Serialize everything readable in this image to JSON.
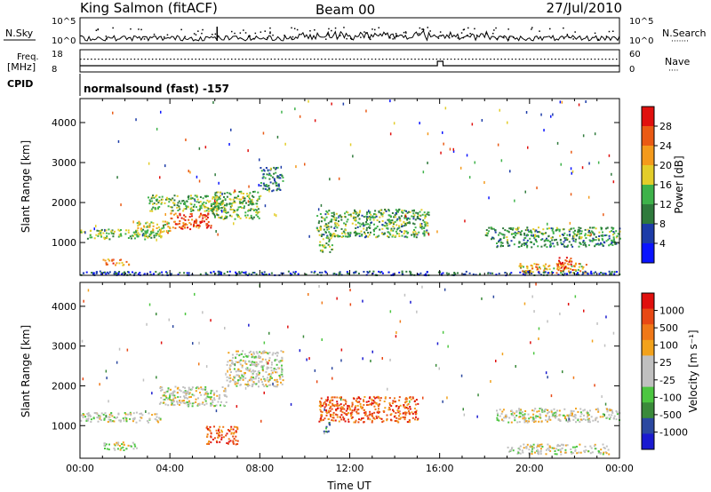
{
  "header": {
    "station": "King Salmon (fitACF)",
    "beam": "Beam 00",
    "date": "27/Jul/2010"
  },
  "noise_panel": {
    "left_label": "N.Sky",
    "right_label": "N.Search",
    "right_legend": "·······",
    "left_ticks": [
      "10^5",
      "10^0"
    ],
    "right_ticks": [
      "10^5",
      "10^0"
    ]
  },
  "freq_panel": {
    "left_label_1": "Freq.",
    "left_label_2": "[MHz]",
    "right_label": "Nave",
    "right_legend": "····",
    "left_ticks": [
      "18",
      "8"
    ],
    "right_ticks": [
      "60",
      "0"
    ]
  },
  "cpid": {
    "label": "CPID",
    "text": "normalsound (fast) -157"
  },
  "chart_data": [
    {
      "type": "heatmap",
      "name": "power",
      "ylabel": "Slant Range [km]",
      "ylim": [
        180,
        4600
      ],
      "yticks": [
        "1000",
        "2000",
        "3000",
        "4000"
      ],
      "colorbar": {
        "label": "Power [dB]",
        "ticks": [
          "4",
          "8",
          "12",
          "16",
          "20",
          "24",
          "28"
        ],
        "colors": [
          "#0a14ff",
          "#1d3ca8",
          "#2f7a3c",
          "#3eb24a",
          "#e3cd2a",
          "#f49a1c",
          "#ea5a14",
          "#e0100e"
        ]
      },
      "x_hours": [
        0,
        24
      ],
      "regions": [
        {
          "x": [
            0,
            3.6
          ],
          "y": [
            1100,
            1350
          ],
          "level": 0.45
        },
        {
          "x": [
            2.5,
            4.0
          ],
          "y": [
            1250,
            1550
          ],
          "level": 0.6
        },
        {
          "x": [
            4.0,
            5.8
          ],
          "y": [
            1350,
            1750
          ],
          "level": 0.85
        },
        {
          "x": [
            5.8,
            8.0
          ],
          "y": [
            1600,
            2300
          ],
          "level": 0.45
        },
        {
          "x": [
            8.0,
            9.0
          ],
          "y": [
            2300,
            2900
          ],
          "level": 0.3
        },
        {
          "x": [
            3.0,
            6.5
          ],
          "y": [
            1800,
            2200
          ],
          "level": 0.45
        },
        {
          "x": [
            1.0,
            2.2
          ],
          "y": [
            450,
            600
          ],
          "level": 0.72
        },
        {
          "x": [
            10.5,
            15.5
          ],
          "y": [
            1150,
            1850
          ],
          "level": 0.4
        },
        {
          "x": [
            10.6,
            11.2
          ],
          "y": [
            780,
            1150
          ],
          "level": 0.45
        },
        {
          "x": [
            18.0,
            24.0
          ],
          "y": [
            1100,
            1400
          ],
          "level": 0.38
        },
        {
          "x": [
            18.5,
            24.0
          ],
          "y": [
            900,
            1100
          ],
          "level": 0.33
        },
        {
          "x": [
            19.5,
            22.5
          ],
          "y": [
            250,
            500
          ],
          "level": 0.62
        },
        {
          "x": [
            21.2,
            21.9
          ],
          "y": [
            300,
            650
          ],
          "level": 0.9
        },
        {
          "x": [
            0,
            24.0
          ],
          "y": [
            200,
            300
          ],
          "level": 0.2
        }
      ]
    },
    {
      "type": "heatmap",
      "name": "velocity",
      "ylabel": "Slant Range [km]",
      "xlabel": "Time UT",
      "ylim": [
        180,
        4600
      ],
      "yticks": [
        "1000",
        "2000",
        "3000",
        "4000"
      ],
      "xticks": [
        "00:00",
        "04:00",
        "08:00",
        "12:00",
        "16:00",
        "20:00",
        "00:00"
      ],
      "colorbar": {
        "label": "Velocity [m s⁻¹]",
        "ticks": [
          "1000",
          "500",
          "100",
          "25",
          "-25",
          "-100",
          "-500",
          "-1000"
        ],
        "colors": [
          "#1a1ad0",
          "#2b48a0",
          "#3a8a3a",
          "#4cc640",
          "#c0c0c0",
          "#c0c0c0",
          "#f2a21c",
          "#f07818",
          "#e84814",
          "#e0100e"
        ]
      },
      "x_hours": [
        0,
        24
      ],
      "regions": [
        {
          "x": [
            0,
            3.6
          ],
          "y": [
            1100,
            1350
          ],
          "level": 0.5
        },
        {
          "x": [
            3.5,
            6.5
          ],
          "y": [
            1500,
            2000
          ],
          "level": 0.5
        },
        {
          "x": [
            6.5,
            9.0
          ],
          "y": [
            2000,
            2900
          ],
          "level": 0.5
        },
        {
          "x": [
            5.6,
            7.0
          ],
          "y": [
            550,
            1000
          ],
          "level": 0.82
        },
        {
          "x": [
            1.0,
            2.5
          ],
          "y": [
            400,
            600
          ],
          "level": 0.5
        },
        {
          "x": [
            10.6,
            15.0
          ],
          "y": [
            1100,
            1750
          ],
          "level": 0.8
        },
        {
          "x": [
            10.8,
            11.1
          ],
          "y": [
            800,
            1100
          ],
          "level": 0.28
        },
        {
          "x": [
            18.5,
            24.0
          ],
          "y": [
            1100,
            1450
          ],
          "level": 0.5
        },
        {
          "x": [
            19.0,
            23.5
          ],
          "y": [
            300,
            550
          ],
          "level": 0.5
        }
      ]
    }
  ]
}
